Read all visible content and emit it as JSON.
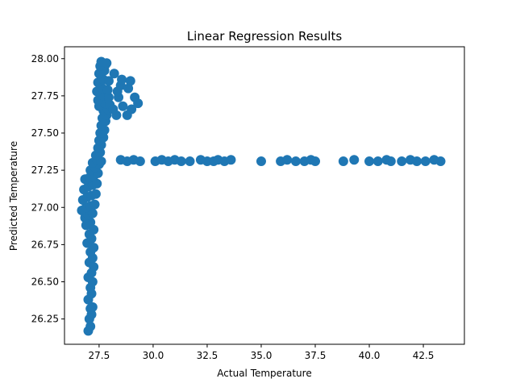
{
  "chart_data": {
    "type": "scatter",
    "title": "Linear Regression Results",
    "xlabel": "Actual Temperature",
    "ylabel": "Predicted Temperature",
    "xlim": [
      25.9,
      44.4
    ],
    "ylim": [
      26.08,
      28.08
    ],
    "xticks": [
      27.5,
      30.0,
      32.5,
      35.0,
      37.5,
      40.0,
      42.5
    ],
    "xtick_labels": [
      "27.5",
      "30.0",
      "32.5",
      "35.0",
      "37.5",
      "40.0",
      "42.5"
    ],
    "yticks": [
      26.25,
      26.5,
      26.75,
      27.0,
      27.25,
      27.5,
      27.75,
      28.0
    ],
    "ytick_labels": [
      "26.25",
      "26.50",
      "26.75",
      "27.00",
      "27.25",
      "27.50",
      "27.75",
      "28.00"
    ],
    "grid": false,
    "marker_color": "#1f77b4",
    "series": [
      {
        "points": [
          [
            27.0,
            26.17
          ],
          [
            27.1,
            26.2
          ],
          [
            27.05,
            26.25
          ],
          [
            27.15,
            26.28
          ],
          [
            27.1,
            26.32
          ],
          [
            27.2,
            26.33
          ],
          [
            27.0,
            26.38
          ],
          [
            27.15,
            26.42
          ],
          [
            27.1,
            26.46
          ],
          [
            27.2,
            26.5
          ],
          [
            27.0,
            26.53
          ],
          [
            27.15,
            26.56
          ],
          [
            27.25,
            26.6
          ],
          [
            27.05,
            26.63
          ],
          [
            27.2,
            26.66
          ],
          [
            27.1,
            26.7
          ],
          [
            27.25,
            26.73
          ],
          [
            26.95,
            26.76
          ],
          [
            27.15,
            26.79
          ],
          [
            27.05,
            26.82
          ],
          [
            27.25,
            26.85
          ],
          [
            26.9,
            26.88
          ],
          [
            27.1,
            26.9
          ],
          [
            26.85,
            26.93
          ],
          [
            27.0,
            26.95
          ],
          [
            27.2,
            26.96
          ],
          [
            26.7,
            26.98
          ],
          [
            26.9,
            27.0
          ],
          [
            27.1,
            27.01
          ],
          [
            27.3,
            27.02
          ],
          [
            26.75,
            27.05
          ],
          [
            26.95,
            27.07
          ],
          [
            27.15,
            27.08
          ],
          [
            27.35,
            27.09
          ],
          [
            26.8,
            27.12
          ],
          [
            27.0,
            27.14
          ],
          [
            27.2,
            27.15
          ],
          [
            27.4,
            27.16
          ],
          [
            26.85,
            27.19
          ],
          [
            27.05,
            27.2
          ],
          [
            27.25,
            27.21
          ],
          [
            27.45,
            27.23
          ],
          [
            27.1,
            27.25
          ],
          [
            27.3,
            27.27
          ],
          [
            27.5,
            27.29
          ],
          [
            27.2,
            27.3
          ],
          [
            27.4,
            27.32
          ],
          [
            27.6,
            27.31
          ],
          [
            27.35,
            27.35
          ],
          [
            27.55,
            27.37
          ],
          [
            27.45,
            27.4
          ],
          [
            27.6,
            27.42
          ],
          [
            27.5,
            27.45
          ],
          [
            27.7,
            27.47
          ],
          [
            27.55,
            27.5
          ],
          [
            27.75,
            27.52
          ],
          [
            27.6,
            27.55
          ],
          [
            27.8,
            27.58
          ],
          [
            27.65,
            27.6
          ],
          [
            27.85,
            27.62
          ],
          [
            27.7,
            27.65
          ],
          [
            27.9,
            27.66
          ],
          [
            27.5,
            27.68
          ],
          [
            27.75,
            27.7
          ],
          [
            28.0,
            27.69
          ],
          [
            27.45,
            27.72
          ],
          [
            27.7,
            27.75
          ],
          [
            27.95,
            27.74
          ],
          [
            27.4,
            27.78
          ],
          [
            27.65,
            27.8
          ],
          [
            27.9,
            27.79
          ],
          [
            27.45,
            27.84
          ],
          [
            27.7,
            27.86
          ],
          [
            27.95,
            27.85
          ],
          [
            27.5,
            27.9
          ],
          [
            27.75,
            27.92
          ],
          [
            27.55,
            27.95
          ],
          [
            27.8,
            27.96
          ],
          [
            27.6,
            27.98
          ],
          [
            27.85,
            27.97
          ],
          [
            28.2,
            27.9
          ],
          [
            28.5,
            27.82
          ],
          [
            28.4,
            27.74
          ],
          [
            28.6,
            27.68
          ],
          [
            28.3,
            27.62
          ],
          [
            28.15,
            27.66
          ],
          [
            28.35,
            27.78
          ],
          [
            28.55,
            27.86
          ],
          [
            28.85,
            27.8
          ],
          [
            29.15,
            27.74
          ],
          [
            29.0,
            27.66
          ],
          [
            28.8,
            27.62
          ],
          [
            29.3,
            27.7
          ],
          [
            28.95,
            27.85
          ],
          [
            28.5,
            27.32
          ],
          [
            28.8,
            27.31
          ],
          [
            29.1,
            27.32
          ],
          [
            29.4,
            27.31
          ],
          [
            30.1,
            27.31
          ],
          [
            30.4,
            27.32
          ],
          [
            30.7,
            27.31
          ],
          [
            31.0,
            27.32
          ],
          [
            31.3,
            27.31
          ],
          [
            31.7,
            27.31
          ],
          [
            32.2,
            27.32
          ],
          [
            32.5,
            27.31
          ],
          [
            32.8,
            27.31
          ],
          [
            33.0,
            27.32
          ],
          [
            33.3,
            27.31
          ],
          [
            33.6,
            27.32
          ],
          [
            35.0,
            27.31
          ],
          [
            35.9,
            27.31
          ],
          [
            36.2,
            27.32
          ],
          [
            36.6,
            27.31
          ],
          [
            37.0,
            27.31
          ],
          [
            37.3,
            27.32
          ],
          [
            37.5,
            27.31
          ],
          [
            38.8,
            27.31
          ],
          [
            39.3,
            27.32
          ],
          [
            40.0,
            27.31
          ],
          [
            40.4,
            27.31
          ],
          [
            40.8,
            27.32
          ],
          [
            41.0,
            27.31
          ],
          [
            41.5,
            27.31
          ],
          [
            41.9,
            27.32
          ],
          [
            42.2,
            27.31
          ],
          [
            42.6,
            27.31
          ],
          [
            43.0,
            27.32
          ],
          [
            43.3,
            27.31
          ]
        ]
      }
    ]
  }
}
